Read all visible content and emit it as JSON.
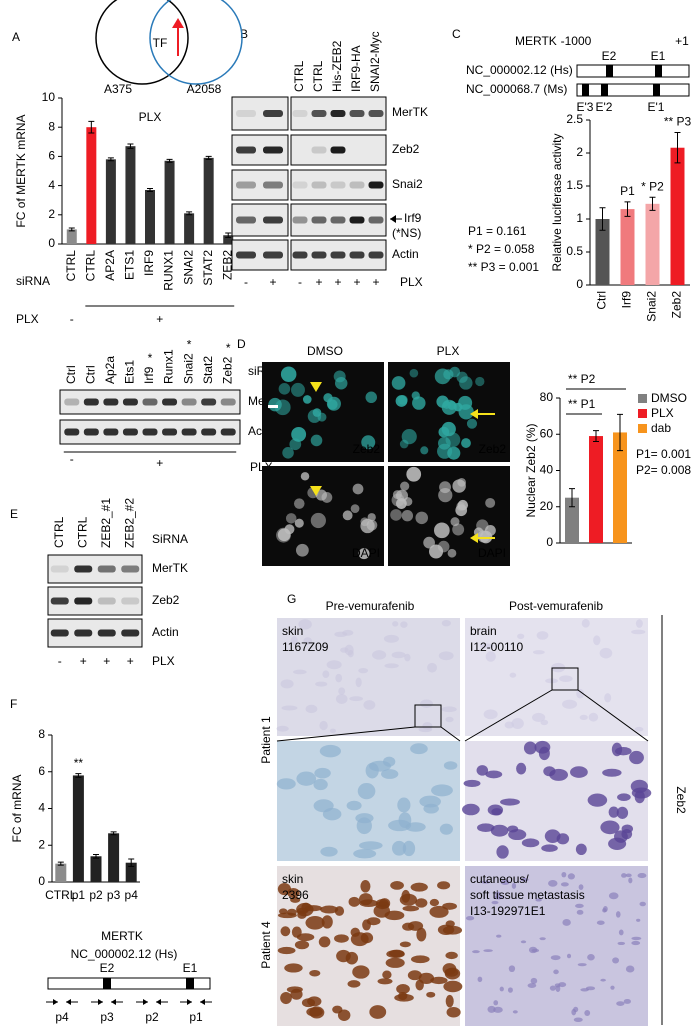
{
  "chart_data": [
    {
      "type": "bar",
      "title": "PLX",
      "ylabel": "FC of MERTK mRNA",
      "categories": [
        "CTRL",
        "CTRL",
        "AP2A",
        "ETS1",
        "IRF9",
        "RUNX1",
        "SNAI2",
        "STAT2",
        "ZEB2"
      ],
      "values": [
        1.0,
        8.0,
        5.8,
        6.7,
        3.7,
        5.7,
        2.1,
        5.9,
        0.6
      ],
      "errors": [
        0.1,
        0.4,
        0.1,
        0.15,
        0.1,
        0.1,
        0.1,
        0.1,
        0.15
      ],
      "colors": [
        "#8c8c8c",
        "#ee1c24",
        "#333333",
        "#333333",
        "#333333",
        "#333333",
        "#333333",
        "#333333",
        "#333333"
      ],
      "ylim": [
        0,
        10
      ],
      "yticks": [
        0,
        2,
        4,
        6,
        8,
        10
      ],
      "row_label": "siRNA",
      "treatment": {
        "label": "PLX",
        "signs": [
          "-",
          "+"
        ]
      }
    },
    {
      "type": "bar",
      "ylabel": "Relative luciferase activity",
      "categories": [
        "Ctrl",
        "Irf9",
        "Snai2",
        "Zeb2"
      ],
      "values": [
        1.0,
        1.15,
        1.23,
        2.08
      ],
      "errors": [
        0.17,
        0.11,
        0.1,
        0.23
      ],
      "colors": [
        "#555555",
        "#f07a7d",
        "#f4a6a8",
        "#ee1c24"
      ],
      "bar_labels": [
        null,
        "P1",
        "* P2",
        "** P3"
      ],
      "ylim": [
        0,
        2.5
      ],
      "yticks": [
        0,
        0.5,
        1,
        1.5,
        2,
        2.5
      ]
    },
    {
      "type": "bar",
      "ylabel": "Nuclear Zeb2 (%)",
      "categories": [
        "DMSO",
        "PLX",
        "dab"
      ],
      "values": [
        25,
        59,
        61
      ],
      "errors": [
        5,
        3,
        10
      ],
      "colors": [
        "#808080",
        "#ee1c24",
        "#f7941d"
      ],
      "legend": "right",
      "comparisons": [
        "** P2",
        "** P1"
      ],
      "notes": [
        "P1= 0.001",
        "P2= 0.008"
      ],
      "ylim": [
        0,
        80
      ],
      "yticks": [
        0,
        20,
        40,
        60,
        80
      ]
    },
    {
      "type": "bar",
      "ylabel": "FC of mRNA",
      "categories": [
        "CTRL",
        "p1",
        "p2",
        "p3",
        "p4"
      ],
      "values": [
        1.0,
        5.8,
        1.4,
        2.65,
        1.05
      ],
      "errors": [
        0.08,
        0.1,
        0.1,
        0.08,
        0.2
      ],
      "colors": [
        "#8c8c8c",
        "#222222",
        "#222222",
        "#222222",
        "#222222"
      ],
      "bar_labels": [
        null,
        "**",
        null,
        null,
        null
      ],
      "bar_label_color": "#ee1c24",
      "ylim": [
        0,
        8
      ],
      "yticks": [
        0,
        2,
        4,
        6,
        8
      ]
    }
  ],
  "panel_labels": [
    "A",
    "B",
    "C",
    "D",
    "E",
    "F",
    "G"
  ],
  "venn": {
    "center": "TF",
    "left": "A375",
    "right": "A2058"
  },
  "blot_A": {
    "lanes": [
      "Ctrl",
      "Ctrl",
      "Ap2a",
      "Ets1",
      "Irf9",
      "Runx1",
      "Snai2",
      "Stat2",
      "Zeb2"
    ],
    "flags": [
      null,
      null,
      null,
      null,
      "*",
      null,
      "*",
      null,
      "*"
    ],
    "lane_title": "siRNA",
    "rows": [
      "MerTK",
      "Actin"
    ],
    "treatment_label": "PLX",
    "signs": [
      "-",
      "+"
    ]
  },
  "blot_B": {
    "lanes": [
      "CTRL",
      "CTRL",
      "His-ZEB2",
      "IRF9-HA",
      "SNAI2-Myc"
    ],
    "rows": [
      "MerTK",
      "Zeb2",
      "Snai2",
      "Irf9",
      "Actin"
    ],
    "note": "(*NS)",
    "treatment_label": "PLX",
    "signs": [
      "-",
      "+",
      "-",
      "+",
      "+",
      "+",
      "+"
    ]
  },
  "promoter_C": {
    "gene": "MERTK",
    "start": "-1000",
    "end": "+1",
    "hs": "NC_000002.12 (Hs)",
    "ms": "NC_000068.7 (Ms)",
    "hs_exons": [
      "E2",
      "E1"
    ],
    "ms_exons": [
      "E'3",
      "E'2",
      "E'1"
    ],
    "pvalues": [
      "P1 = 0.161",
      "* P2 = 0.058",
      "** P3 = 0.001"
    ]
  },
  "images_D": {
    "columns": [
      "DMSO",
      "PLX"
    ],
    "stains": [
      "Zeb2",
      "DAPI"
    ]
  },
  "blot_E": {
    "lanes": [
      "CTRL",
      "CTRL",
      "ZEB2_#1",
      "ZEB2_#2"
    ],
    "lane_title": "SiRNA",
    "rows": [
      "MerTK",
      "Zeb2",
      "Actin"
    ],
    "treatment_label": "PLX",
    "signs": [
      "-",
      "+",
      "+",
      "+"
    ]
  },
  "gene_F": {
    "gene": "MERTK",
    "accession": "NC_000002.12 (Hs)",
    "exons": [
      "E2",
      "E1"
    ],
    "primers": [
      "p4",
      "p3",
      "p2",
      "p1"
    ]
  },
  "ihc_G": {
    "columns": [
      "Pre-vemurafenib",
      "Post-vemurafenib"
    ],
    "rows": [
      "Patient 1",
      "Patient 4"
    ],
    "stain": "Zeb2",
    "samples": [
      [
        "skin",
        "1167Z09"
      ],
      [
        "brain",
        "I12-00110"
      ],
      [
        "skin",
        "2396"
      ],
      [
        "cutaneous/",
        "soft tissue metastasis",
        "I13-192971E1"
      ]
    ]
  }
}
